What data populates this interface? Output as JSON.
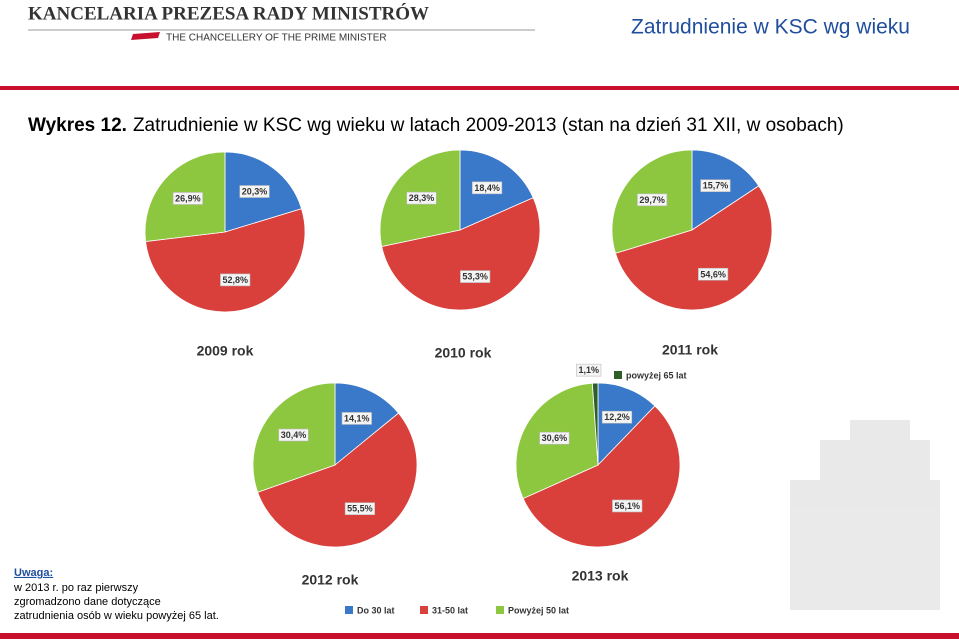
{
  "header": {
    "org": "KANCELARIA PREZESA RADY MINISTRÓW",
    "org_en": "THE CHANCELLERY OF THE PRIME MINISTER",
    "slide_title": "Zatrudnienie w KSC wg wieku"
  },
  "figure_title": {
    "label": "Wykres 12.",
    "text": "Zatrudnienie w KSC wg wieku w latach 2009-2013 (stan na dzień 31 XII, w osobach)"
  },
  "chart_data": [
    {
      "type": "pie",
      "title": "2009 rok",
      "values": [
        20.3,
        52.8,
        26.9
      ],
      "value_labels": [
        "20,3%",
        "52,8%",
        "26,9%"
      ],
      "colors": [
        "#3a78c9",
        "#d9403b",
        "#8dc63f"
      ]
    },
    {
      "type": "pie",
      "title": "2010 rok",
      "values": [
        18.4,
        53.3,
        28.3
      ],
      "value_labels": [
        "18,4%",
        "53,3%",
        "28,3%"
      ],
      "colors": [
        "#3a78c9",
        "#d9403b",
        "#8dc63f"
      ]
    },
    {
      "type": "pie",
      "title": "2011 rok",
      "values": [
        15.7,
        54.6,
        29.7
      ],
      "value_labels": [
        "15,7%",
        "54,6%",
        "29,7%"
      ],
      "colors": [
        "#3a78c9",
        "#d9403b",
        "#8dc63f"
      ]
    },
    {
      "type": "pie",
      "title": "2012 rok",
      "values": [
        14.1,
        55.5,
        30.4
      ],
      "value_labels": [
        "14,1%",
        "55,5%",
        "30,4%"
      ],
      "colors": [
        "#3a78c9",
        "#d9403b",
        "#8dc63f"
      ]
    },
    {
      "type": "pie",
      "title": "2013 rok",
      "categories": [
        "Do 30 lat",
        "31-50 lat",
        "Powyżej 50 lat",
        "powyżej 65 lat"
      ],
      "values": [
        12.2,
        56.1,
        30.6,
        1.1
      ],
      "value_labels": [
        "12,2%",
        "56,1%",
        "30,6%",
        "1,1%"
      ],
      "colors": [
        "#3a78c9",
        "#d9403b",
        "#8dc63f",
        "#2e5e2a"
      ]
    }
  ],
  "note": {
    "title": "Uwaga:",
    "lines": [
      "w 2013 r. po raz pierwszy",
      "zgromadzono dane dotyczące",
      "zatrudnienia osób w wieku powyżej 65 lat."
    ]
  }
}
